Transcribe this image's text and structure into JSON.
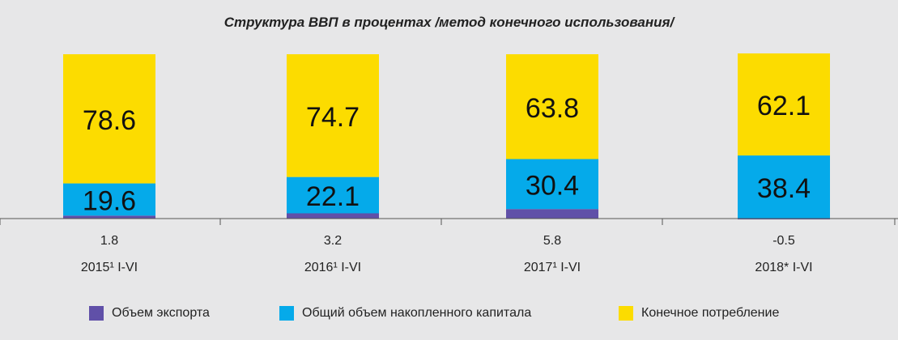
{
  "title": "Структура ВВП в процентах /метод конечного использования/",
  "chart_data": {
    "type": "bar",
    "stacked": true,
    "categories": [
      "2015¹ I-VI",
      "2016¹ I-VI",
      "2017¹ I-VI",
      "2018* I-VI"
    ],
    "series": [
      {
        "name": "Объем экспорта",
        "values": [
          1.8,
          3.2,
          5.8,
          -0.5
        ],
        "color": "#6050a8"
      },
      {
        "name": "Общий объем накопленного капитала",
        "values": [
          19.6,
          22.1,
          30.4,
          38.4
        ],
        "color": "#05aaea"
      },
      {
        "name": "Конечное потребление",
        "values": [
          78.6,
          74.7,
          63.8,
          62.1
        ],
        "color": "#fcdc00"
      }
    ],
    "grid": false,
    "legend": "bottom"
  }
}
